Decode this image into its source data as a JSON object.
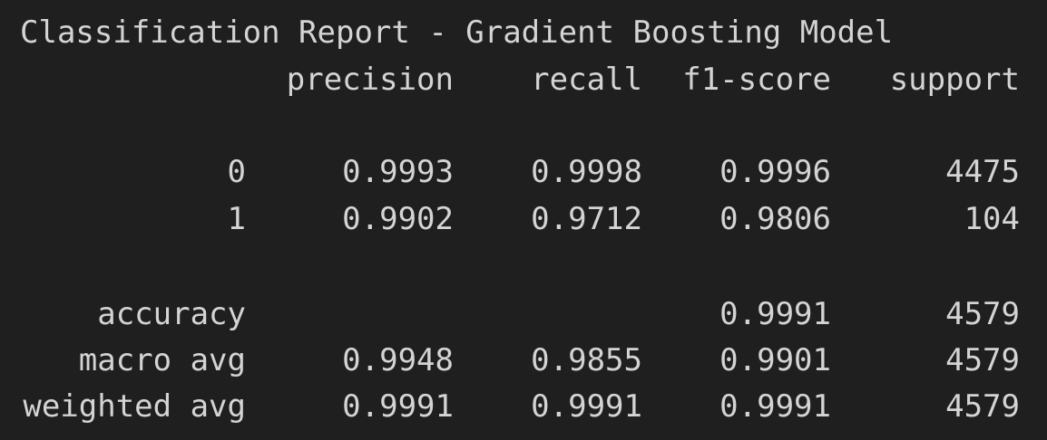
{
  "report": {
    "title": "Classification Report - Gradient Boosting Model",
    "headers": {
      "precision": "precision",
      "recall": "recall",
      "f1": "f1-score",
      "support": "support"
    },
    "rows": [
      {
        "label": "0",
        "precision": "0.9993",
        "recall": "0.9998",
        "f1": "0.9996",
        "support": "4475"
      },
      {
        "label": "1",
        "precision": "0.9902",
        "recall": "0.9712",
        "f1": "0.9806",
        "support": "104"
      }
    ],
    "accuracy": {
      "label": "accuracy",
      "f1": "0.9991",
      "support": "4579"
    },
    "macro_avg": {
      "label": "macro avg",
      "precision": "0.9948",
      "recall": "0.9855",
      "f1": "0.9901",
      "support": "4579"
    },
    "weighted_avg": {
      "label": "weighted avg",
      "precision": "0.9991",
      "recall": "0.9991",
      "f1": "0.9991",
      "support": "4579"
    }
  }
}
